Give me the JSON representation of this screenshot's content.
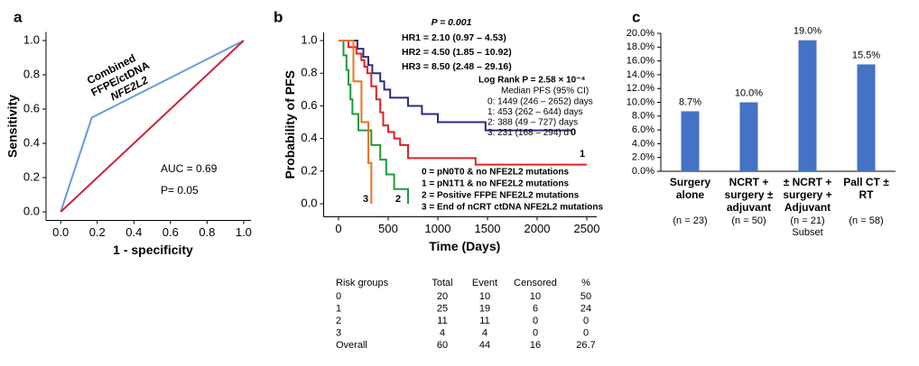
{
  "chart_data": [
    {
      "type": "line",
      "panel": "a",
      "xlabel": "1 - specificity",
      "ylabel": "Sensitivity",
      "xlim": [
        -0.08,
        1.04
      ],
      "ylim": [
        -0.05,
        1.05
      ],
      "xticks": [
        {
          "value": 0,
          "label": "0.0"
        },
        {
          "value": 0.2,
          "label": "0.2"
        },
        {
          "value": 0.4,
          "label": "0.4"
        },
        {
          "value": 0.6,
          "label": "0.6"
        },
        {
          "value": 0.8,
          "label": "0.8"
        },
        {
          "value": 1,
          "label": "1.0"
        }
      ],
      "yticks": [
        {
          "value": 0,
          "label": "0.0"
        },
        {
          "value": 0.2,
          "label": "0.2"
        },
        {
          "value": 0.4,
          "label": "0.4"
        },
        {
          "value": 0.6,
          "label": "0.6"
        },
        {
          "value": 0.8,
          "label": "0.8"
        },
        {
          "value": 1,
          "label": "1.0"
        }
      ],
      "series": [
        {
          "color": "#6a9bd8",
          "x": [
            0,
            0.17,
            1
          ],
          "values": [
            0,
            0.55,
            1
          ]
        },
        {
          "color": "#d0203a",
          "x": [
            0,
            1
          ],
          "values": [
            0,
            1
          ]
        }
      ],
      "curve_label": [
        "Combined",
        "FFPE/ctDNA",
        "NFE2L2"
      ],
      "curve_label_color": "#3b2f9e",
      "annotations": [
        "AUC = 0.69",
        "P= 0.05"
      ]
    },
    {
      "type": "step",
      "panel": "b",
      "xlabel": "Time (Days)",
      "ylabel": "Probability of PFS",
      "xlim": [
        -150,
        2600
      ],
      "ylim": [
        -0.08,
        1.05
      ],
      "xticks": [
        0,
        500,
        1000,
        1500,
        2000,
        2500
      ],
      "yticks": [
        {
          "value": 0,
          "label": "0.0"
        },
        {
          "value": 0.2,
          "label": "0.2"
        },
        {
          "value": 0.4,
          "label": "0.4"
        },
        {
          "value": 0.6,
          "label": "0.6"
        },
        {
          "value": 0.8,
          "label": "0.8"
        },
        {
          "value": 1,
          "label": "1.0"
        }
      ],
      "series": [
        {
          "name": "0 = pN0T0 & no NFE2L2 mutations",
          "label": "0",
          "median": "0: 1449 (246 – 2652) days",
          "color": "#2b2a85",
          "x": [
            0,
            190,
            250,
            300,
            340,
            420,
            460,
            520,
            700,
            840,
            1000,
            1480,
            2350
          ],
          "values": [
            1.0,
            0.95,
            0.9,
            0.85,
            0.8,
            0.75,
            0.7,
            0.65,
            0.6,
            0.55,
            0.5,
            0.45,
            0.45
          ]
        },
        {
          "name": "1 = pN1T1 & no NFE2L2 mutations",
          "label": "1",
          "median": "1: 453 (262 – 644) days",
          "color": "#e0202a",
          "x": [
            0,
            100,
            180,
            230,
            260,
            290,
            330,
            380,
            420,
            450,
            500,
            560,
            620,
            700,
            1380,
            2500
          ],
          "values": [
            1.0,
            0.96,
            0.92,
            0.88,
            0.84,
            0.8,
            0.72,
            0.64,
            0.56,
            0.48,
            0.44,
            0.4,
            0.36,
            0.28,
            0.24,
            0.24
          ]
        },
        {
          "name": "2 = Positive FFPE NFE2L2 mutations",
          "label": "2",
          "median": "2: 388 (49 – 727) days",
          "color": "#1d9a3c",
          "x": [
            0,
            50,
            80,
            100,
            120,
            140,
            200,
            330,
            420,
            480,
            560,
            700
          ],
          "values": [
            1.0,
            0.91,
            0.82,
            0.73,
            0.64,
            0.55,
            0.45,
            0.36,
            0.27,
            0.18,
            0.09,
            0
          ]
        },
        {
          "name": "3 = End of nCRT ctDNA NFE2L2 mutations",
          "label": "3",
          "median": "3: 231 (168 – 294) d",
          "color": "#e8731f",
          "x": [
            0,
            150,
            231,
            300,
            330
          ],
          "values": [
            1.0,
            0.75,
            0.5,
            0.25,
            0
          ]
        }
      ],
      "annotations": [
        "P = 0.001",
        "HR1 = 2.10 (0.97 – 4.53)",
        "HR2 = 4.50 (1.85 – 10.92)",
        "HR3 = 8.50 (2.48 – 29.16)",
        "Log Rank P = 2.58 × 10⁻⁴",
        "Median PFS (95% CI)"
      ]
    },
    {
      "type": "bar",
      "panel": "c",
      "ylim": [
        0,
        20
      ],
      "yticks": [
        {
          "value": 0,
          "label": "0.0%"
        },
        {
          "value": 2,
          "label": "2.0%"
        },
        {
          "value": 4,
          "label": "4.0%"
        },
        {
          "value": 6,
          "label": "6.0%"
        },
        {
          "value": 8,
          "label": "8.0%"
        },
        {
          "value": 10,
          "label": "10.0%"
        },
        {
          "value": 12,
          "label": "12.0%"
        },
        {
          "value": 14,
          "label": "14.0%"
        },
        {
          "value": 16,
          "label": "16.0%"
        },
        {
          "value": 18,
          "label": "18.0%"
        },
        {
          "value": 20,
          "label": "20.0%"
        }
      ],
      "categories": [
        "Surgery\nalone",
        "NCRT +\nsurgery ±\nadjuvant",
        "± NCRT +\nsurgery +\nAdjuvant",
        "Pall CT ± RT"
      ],
      "group_sizes": [
        "(n = 23)",
        "(n = 50)",
        "(n = 21)\nSubset",
        "(n = 58)"
      ],
      "values": [
        8.7,
        10.0,
        19.0,
        15.5
      ],
      "value_labels": [
        "8.7%",
        "10.0%",
        "19.0%",
        "15.5%"
      ],
      "color": "#4472c4"
    }
  ],
  "risk_table": {
    "header": [
      "Risk groups",
      "Total",
      "Event",
      "Censored",
      "%"
    ],
    "rows": [
      [
        "0",
        "20",
        "10",
        "10",
        "50"
      ],
      [
        "1",
        "25",
        "19",
        "6",
        "24"
      ],
      [
        "2",
        "11",
        "11",
        "0",
        "0"
      ],
      [
        "3",
        "4",
        "4",
        "0",
        "0"
      ],
      [
        "Overall",
        "60",
        "44",
        "16",
        "26.7"
      ]
    ],
    "row_colors": [
      "#2b2a85",
      "#e0202a",
      "#1d9a3c",
      "#e8731f",
      "#000000"
    ]
  }
}
